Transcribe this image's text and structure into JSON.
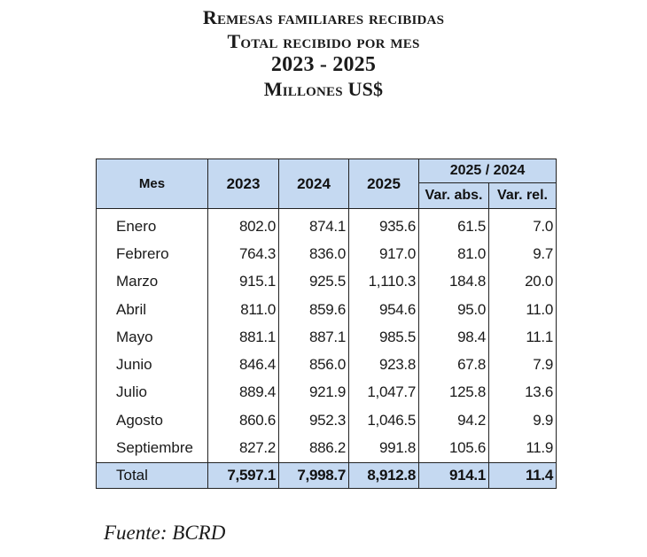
{
  "title": {
    "line1": "Remesas familiares recibidas",
    "line2": "Total recibido por mes",
    "line3": "2023 - 2025",
    "line4": "Millones US$"
  },
  "table": {
    "headers": {
      "month": "Mes",
      "y2023": "2023",
      "y2024": "2024",
      "y2025": "2025",
      "comparison": "2025 / 2024",
      "var_abs": "Var. abs.",
      "var_rel": "Var. rel."
    },
    "rows": [
      {
        "month": "Enero",
        "y2023": "802.0",
        "y2024": "874.1",
        "y2025": "935.6",
        "var_abs": "61.5",
        "var_rel": "7.0"
      },
      {
        "month": "Febrero",
        "y2023": "764.3",
        "y2024": "836.0",
        "y2025": "917.0",
        "var_abs": "81.0",
        "var_rel": "9.7"
      },
      {
        "month": "Marzo",
        "y2023": "915.1",
        "y2024": "925.5",
        "y2025": "1,110.3",
        "var_abs": "184.8",
        "var_rel": "20.0"
      },
      {
        "month": "Abril",
        "y2023": "811.0",
        "y2024": "859.6",
        "y2025": "954.6",
        "var_abs": "95.0",
        "var_rel": "11.0"
      },
      {
        "month": "Mayo",
        "y2023": "881.1",
        "y2024": "887.1",
        "y2025": "985.5",
        "var_abs": "98.4",
        "var_rel": "11.1"
      },
      {
        "month": "Junio",
        "y2023": "846.4",
        "y2024": "856.0",
        "y2025": "923.8",
        "var_abs": "67.8",
        "var_rel": "7.9"
      },
      {
        "month": "Julio",
        "y2023": "889.4",
        "y2024": "921.9",
        "y2025": "1,047.7",
        "var_abs": "125.8",
        "var_rel": "13.6"
      },
      {
        "month": "Agosto",
        "y2023": "860.6",
        "y2024": "952.3",
        "y2025": "1,046.5",
        "var_abs": "94.2",
        "var_rel": "9.9"
      },
      {
        "month": "Septiembre",
        "y2023": "827.2",
        "y2024": "886.2",
        "y2025": "991.8",
        "var_abs": "105.6",
        "var_rel": "11.9"
      }
    ],
    "total": {
      "month": "Total",
      "y2023": "7,597.1",
      "y2024": "7,998.7",
      "y2025": "8,912.8",
      "var_abs": "914.1",
      "var_rel": "11.4"
    }
  },
  "source": "Fuente: BCRD",
  "colors": {
    "header_fill": "#c5d9f1",
    "border": "#222222"
  }
}
